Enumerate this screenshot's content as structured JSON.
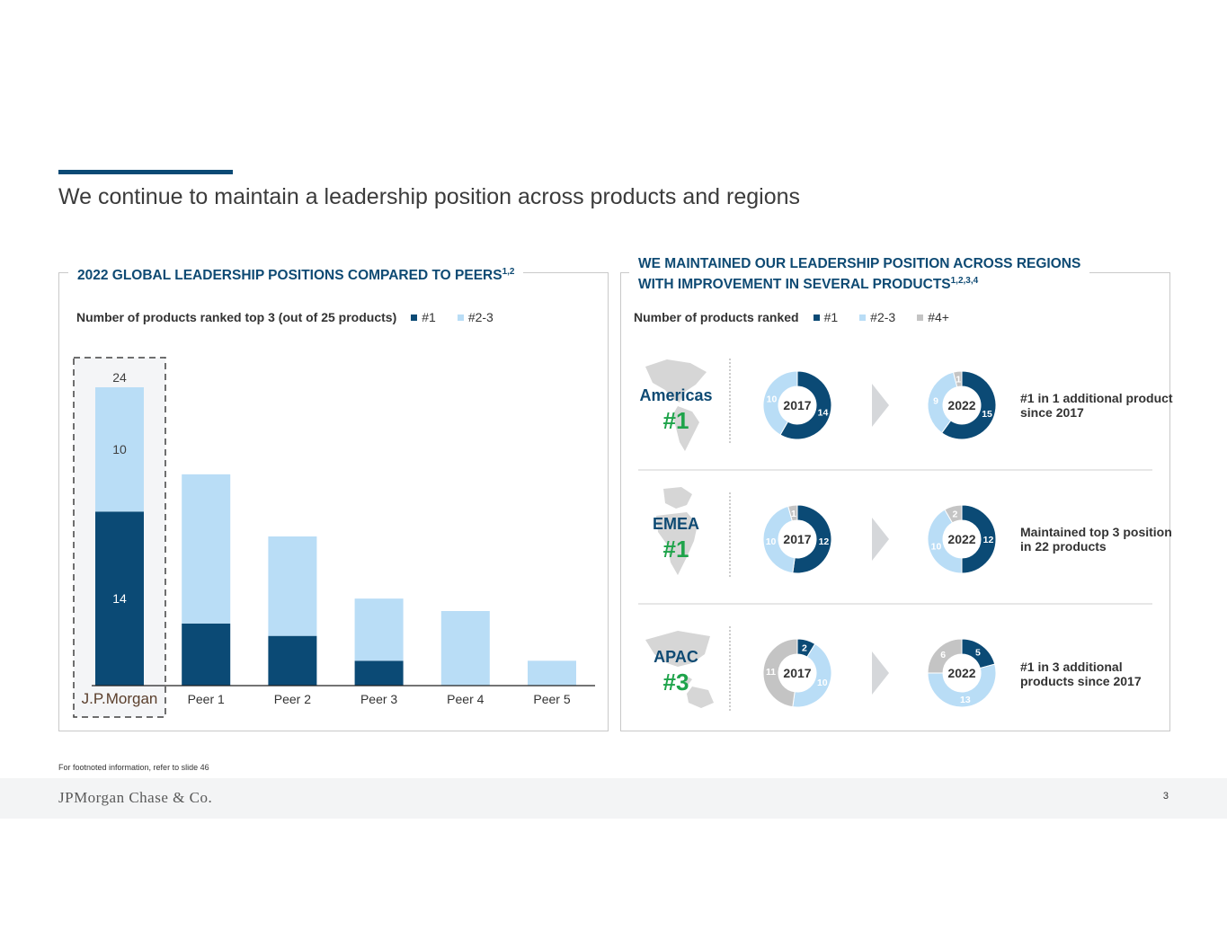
{
  "title": "We continue to maintain a leadership position across products and regions",
  "left_panel": {
    "title": "2022 GLOBAL LEADERSHIP POSITIONS COMPARED TO PEERS",
    "title_sup": "1,2",
    "legend_label": "Number of products ranked top 3 (out of 25 products)",
    "legend_items": [
      "#1",
      "#2-3"
    ]
  },
  "right_panel": {
    "title_line1": "WE MAINTAINED OUR LEADERSHIP POSITION ACROSS REGIONS",
    "title_line2": "WITH IMPROVEMENT IN SEVERAL PRODUCTS",
    "title_sup": "1,2,3,4",
    "legend_label": "Number of products ranked",
    "legend_items": [
      "#1",
      "#2-3",
      "#4+"
    ],
    "regions": [
      {
        "name": "Americas",
        "rank": "#1",
        "note": "#1 in 1 additional product since 2017",
        "donut_2017": {
          "year": "2017",
          "values": [
            14,
            10,
            0
          ]
        },
        "donut_2022": {
          "year": "2022",
          "values": [
            15,
            9,
            1
          ]
        }
      },
      {
        "name": "EMEA",
        "rank": "#1",
        "note": "Maintained top 3 position in 22 products",
        "donut_2017": {
          "year": "2017",
          "values": [
            12,
            10,
            1
          ]
        },
        "donut_2022": {
          "year": "2022",
          "values": [
            12,
            10,
            2
          ]
        }
      },
      {
        "name": "APAC",
        "rank": "#3",
        "note": "#1 in 3 additional products since 2017",
        "donut_2017": {
          "year": "2017",
          "values": [
            2,
            10,
            11
          ]
        },
        "donut_2022": {
          "year": "2022",
          "values": [
            5,
            13,
            6
          ]
        }
      }
    ]
  },
  "chart_data": {
    "type": "bar",
    "stacked": true,
    "title": "2022 GLOBAL LEADERSHIP POSITIONS COMPARED TO PEERS",
    "ylabel": "Number of products ranked top 3 (out of 25 products)",
    "categories": [
      "J.P.Morgan",
      "Peer 1",
      "Peer 2",
      "Peer 3",
      "Peer 4",
      "Peer 5"
    ],
    "series": [
      {
        "name": "#1",
        "values": [
          14,
          5,
          4,
          2,
          0,
          0
        ]
      },
      {
        "name": "#2-3",
        "values": [
          10,
          12,
          8,
          5,
          6,
          2
        ]
      }
    ],
    "totals": [
      24,
      null,
      null,
      null,
      null,
      null
    ],
    "ylim": [
      0,
      25
    ]
  },
  "colors": {
    "dark": "#0b4a75",
    "light": "#b9ddf6",
    "gray": "#c4c4c4",
    "green": "#1ea34a",
    "title_blue": "#0e4a73"
  },
  "footnote": "For footnoted information, refer to slide 46",
  "footer_logo": "JPMorgan Chase & Co.",
  "page_number": "3"
}
